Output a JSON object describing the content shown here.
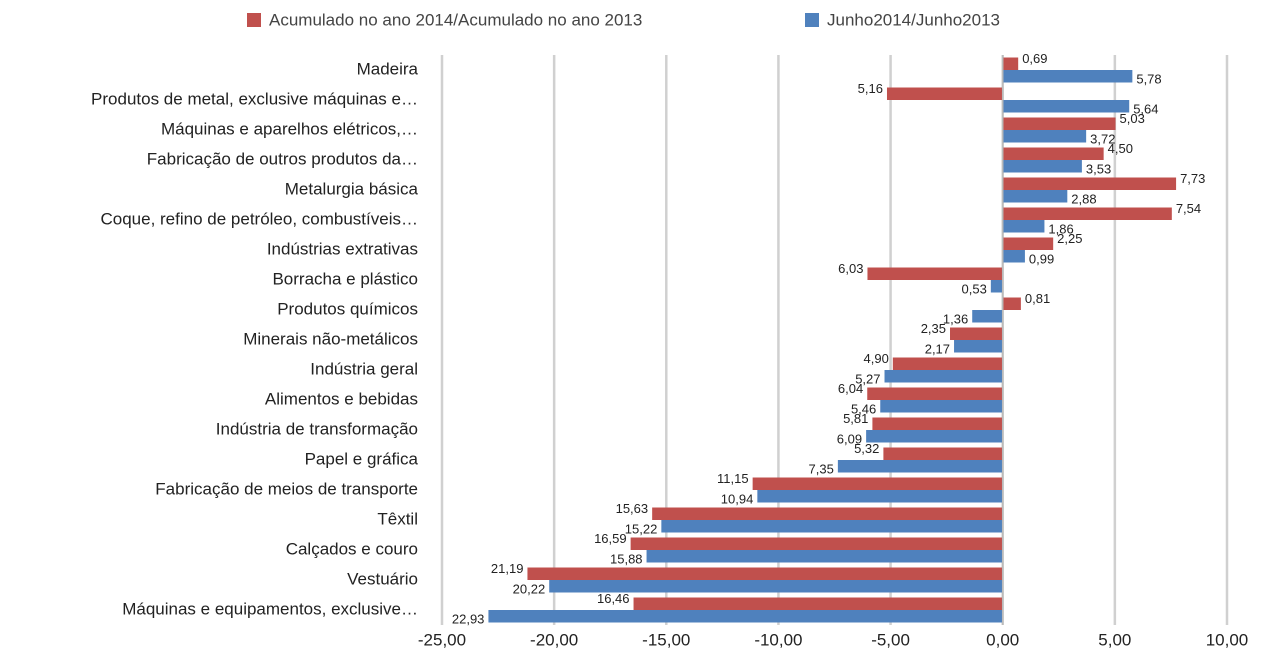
{
  "chart_data": {
    "type": "hbar",
    "categories": [
      "Madeira",
      "Produtos de metal, exclusive máquinas e…",
      "Máquinas e aparelhos elétricos,…",
      "Fabricação de outros produtos da…",
      "Metalurgia básica",
      "Coque, refino de petróleo, combustíveis…",
      "Indústrias extrativas",
      "Borracha e plástico",
      "Produtos químicos",
      "Minerais não-metálicos",
      "Indústria geral",
      "Alimentos e bebidas",
      "Indústria de transformação",
      "Papel e gráfica",
      "Fabricação de meios de transporte",
      "Têxtil",
      "Calçados e couro",
      "Vestuário",
      "Máquinas e equipamentos, exclusive…"
    ],
    "series": [
      {
        "name": "Acumulado no ano 2014/Acumulado no ano 2013",
        "color": "#c0504d",
        "values": [
          0.69,
          -5.16,
          5.03,
          4.5,
          7.73,
          7.54,
          2.25,
          -6.03,
          0.81,
          -2.35,
          -4.9,
          -6.04,
          -5.81,
          -5.32,
          -11.15,
          -15.63,
          -16.59,
          -21.19,
          -16.46
        ],
        "value_labels": [
          "0,69",
          "5,16",
          "5,03",
          "4,50",
          "7,73",
          "7,54",
          "2,25",
          "6,03",
          "0,81",
          "2,35",
          "4,90",
          "6,04",
          "5,81",
          "5,32",
          "11,15",
          "15,63",
          "16,59",
          "21,19",
          "16,46"
        ]
      },
      {
        "name": "Junho2014/Junho2013",
        "color": "#4f81bd",
        "values": [
          5.78,
          5.64,
          3.72,
          3.53,
          2.88,
          1.86,
          0.99,
          -0.53,
          -1.36,
          -2.17,
          -5.27,
          -5.46,
          -6.09,
          -7.35,
          -10.94,
          -15.22,
          -15.88,
          -20.22,
          -22.93
        ],
        "value_labels": [
          "5,78",
          "5,64",
          "3,72",
          "3,53",
          "2,88",
          "1,86",
          "0,99",
          "0,53",
          "1,36",
          "2,17",
          "5,27",
          "5,46",
          "6,09",
          "7,35",
          "10,94",
          "15,22",
          "15,88",
          "20,22",
          "22,93"
        ]
      }
    ],
    "xlim": [
      -25,
      10
    ],
    "xticks": [
      {
        "value": -25,
        "label": "-25,00"
      },
      {
        "value": -20,
        "label": "-20,00"
      },
      {
        "value": -15,
        "label": "-15,00"
      },
      {
        "value": -10,
        "label": "-10,00"
      },
      {
        "value": -5,
        "label": "-5,00"
      },
      {
        "value": 0,
        "label": "0,00"
      },
      {
        "value": 5,
        "label": "5,00"
      },
      {
        "value": 10,
        "label": "10,00"
      }
    ],
    "grid": true,
    "legend": "top"
  }
}
